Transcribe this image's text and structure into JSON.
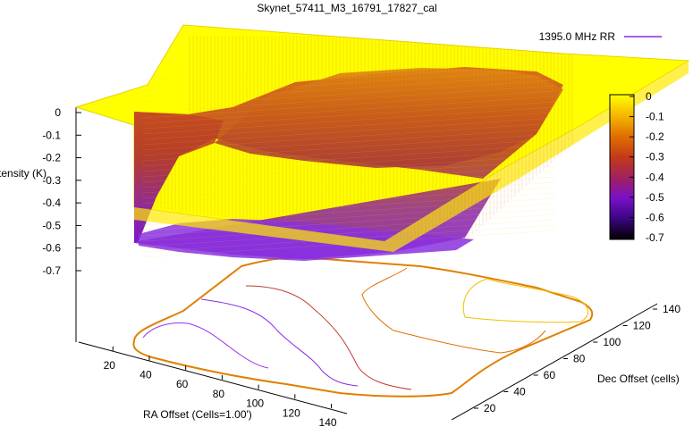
{
  "chart_data": {
    "type": "surface",
    "title": "Skynet_57411_M3_16791_17827_cal",
    "series": [
      {
        "name": "1395.0 MHz RR",
        "color": "#ffd700"
      }
    ],
    "xlabel": "RA Offset (Cells=1.00')",
    "ylabel": "Dec Offset (cells)",
    "zlabel": "Intensity (K)",
    "x_ticks": [
      "20",
      "40",
      "60",
      "80",
      "100",
      "120",
      "140"
    ],
    "y_ticks": [
      "20",
      "40",
      "60",
      "80",
      "100",
      "120",
      "140"
    ],
    "z_ticks": [
      "0",
      "-0.1",
      "-0.2",
      "-0.3",
      "-0.4",
      "-0.5",
      "-0.6",
      "-0.7"
    ],
    "zlim": [
      -0.7,
      0
    ],
    "colorbar": {
      "ticks": [
        "0",
        "-0.1",
        "-0.2",
        "-0.3",
        "-0.4",
        "-0.5",
        "-0.6",
        "-0.7"
      ],
      "range": [
        -0.7,
        0
      ],
      "colors": [
        "#ffff00",
        "#f5b800",
        "#e07000",
        "#c43a18",
        "#a1225c",
        "#7a10c8",
        "#3a0580",
        "#000000"
      ]
    },
    "contours_on_base": true,
    "grid": false
  }
}
